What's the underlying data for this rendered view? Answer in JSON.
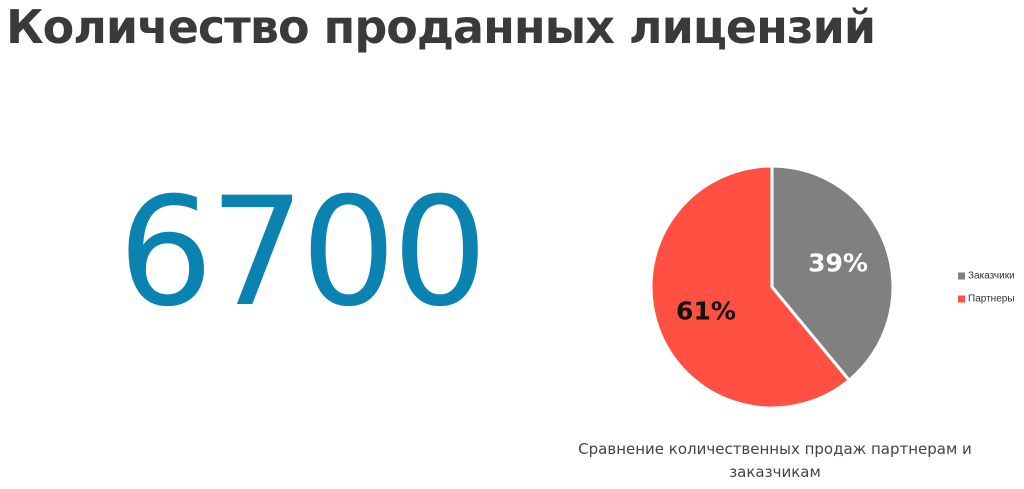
{
  "header": {
    "title": "Количество проданных лицензий"
  },
  "kpi": {
    "value": "6700"
  },
  "chart_data": {
    "type": "pie",
    "title": "",
    "caption": "Сравнение количественных продаж партнерам и заказчикам",
    "legend_position": "right",
    "categories": [
      "Заказчики",
      "Партнеры"
    ],
    "values": [
      39,
      61
    ],
    "labels": [
      "39%",
      "61%"
    ],
    "colors": [
      "#808080",
      "#ff5043"
    ],
    "label_colors": [
      "#ffffff",
      "#111111"
    ]
  }
}
